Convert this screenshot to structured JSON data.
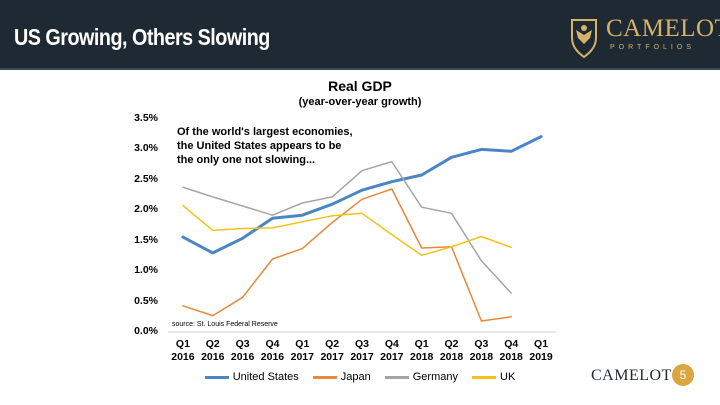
{
  "header": {
    "title": "US Growing, Others Slowing"
  },
  "logo": {
    "text": "CAMELOT",
    "subtext": "PORTFOLIOS",
    "icon": "eagle-icon",
    "color": "#d4b26a"
  },
  "chart_data": {
    "type": "line",
    "title": "Real GDP",
    "subtitle": "(year-over-year growth)",
    "annotation": [
      "Of the world's largest economies,",
      "the United States appears to be",
      "the only one not slowing..."
    ],
    "source": "source: St. Louis Federal Reserve",
    "ylim": [
      0,
      3.5
    ],
    "yticks": [
      "0.0%",
      "0.5%",
      "1.0%",
      "1.5%",
      "2.0%",
      "2.5%",
      "3.0%",
      "3.5%"
    ],
    "categories": [
      [
        "Q1",
        "2016"
      ],
      [
        "Q2",
        "2016"
      ],
      [
        "Q3",
        "2016"
      ],
      [
        "Q4",
        "2016"
      ],
      [
        "Q1",
        "2017"
      ],
      [
        "Q2",
        "2017"
      ],
      [
        "Q3",
        "2017"
      ],
      [
        "Q4",
        "2017"
      ],
      [
        "Q1",
        "2018"
      ],
      [
        "Q2",
        "2018"
      ],
      [
        "Q3",
        "2018"
      ],
      [
        "Q4",
        "2018"
      ],
      [
        "Q1",
        "2019"
      ]
    ],
    "series": [
      {
        "name": "United States",
        "color": "#4a86c5",
        "width": 3,
        "values": [
          1.56,
          1.3,
          1.54,
          1.87,
          1.92,
          2.1,
          2.33,
          2.47,
          2.58,
          2.87,
          3.0,
          2.97,
          3.21
        ]
      },
      {
        "name": "Japan",
        "color": "#e8883a",
        "width": 1.5,
        "values": [
          0.43,
          0.27,
          0.57,
          1.2,
          1.37,
          1.8,
          2.18,
          2.35,
          1.38,
          1.4,
          0.18,
          0.25,
          null
        ]
      },
      {
        "name": "Germany",
        "color": "#a5a5a5",
        "width": 1.5,
        "values": [
          2.38,
          2.22,
          2.07,
          1.92,
          2.12,
          2.22,
          2.65,
          2.8,
          2.05,
          1.95,
          1.17,
          0.64,
          null
        ]
      },
      {
        "name": "UK",
        "color": "#f2c21b",
        "width": 1.5,
        "values": [
          2.08,
          1.67,
          1.7,
          1.71,
          1.81,
          1.91,
          1.95,
          1.6,
          1.26,
          1.4,
          1.57,
          1.39,
          null
        ]
      }
    ]
  },
  "footer": {
    "brand": "CAMELOT",
    "page_number": "5"
  }
}
